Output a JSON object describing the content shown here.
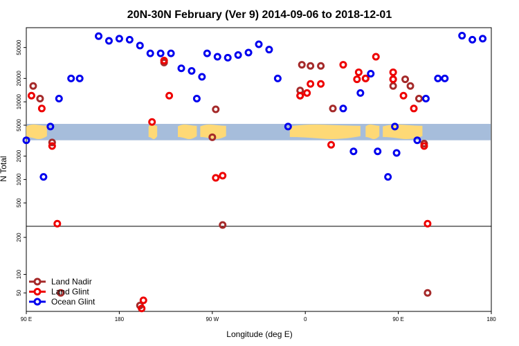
{
  "chart_data": {
    "type": "scatter",
    "title": "20N-30N February (Ver 9)   2014-09-06 to 2018-12-01",
    "xlabel": "Longitude (deg E)",
    "ylabel": "N Total",
    "xlim": [
      -90,
      180
    ],
    "x_ticks": [
      {
        "value": -90,
        "label": "90 E"
      },
      {
        "value": -36,
        "label": "180"
      },
      {
        "value": 18,
        "label": "90 W"
      },
      {
        "value": 72,
        "label": "0"
      },
      {
        "value": 126,
        "label": "90 E"
      },
      {
        "value": 180,
        "label": "180"
      }
    ],
    "upper_panel": {
      "scale": "log",
      "ylim": [
        250,
        90000
      ],
      "y_ticks": [
        500,
        1000,
        2000,
        5000,
        10000,
        20000,
        50000
      ],
      "map_band": {
        "ymin": 3200,
        "ymax": 5200,
        "ocean_color": "#a6bddb",
        "land_color": "#fed976"
      }
    },
    "lower_panel": {
      "scale": "linear",
      "ylim": [
        0,
        230
      ],
      "y_ticks": [
        50,
        100,
        200
      ]
    },
    "legend_position": "bottom-left",
    "series": [
      {
        "name": "Land Nadir",
        "color": "#a52a2a",
        "points": [
          [
            -86,
            16000
          ],
          [
            -82,
            11000
          ],
          [
            -75,
            3000
          ],
          [
            18,
            3500
          ],
          [
            -10,
            32000
          ],
          [
            20,
            8000
          ],
          [
            24,
            260
          ],
          [
            69,
            14000
          ],
          [
            69,
            12000
          ],
          [
            70,
            30000
          ],
          [
            75,
            29000
          ],
          [
            81,
            29000
          ],
          [
            88,
            8200
          ],
          [
            107,
            20000
          ],
          [
            123,
            16000
          ],
          [
            123,
            19500
          ],
          [
            130,
            19500
          ],
          [
            133,
            16000
          ],
          [
            138,
            11000
          ],
          [
            141,
            2900
          ],
          [
            -70,
            50
          ],
          [
            -24,
            16
          ],
          [
            143,
            50
          ]
        ]
      },
      {
        "name": "Land Glint",
        "color": "#ee0000",
        "points": [
          [
            -87,
            12000
          ],
          [
            -81,
            8200
          ],
          [
            -75,
            2700
          ],
          [
            -72,
            270
          ],
          [
            -17,
            5500
          ],
          [
            -10,
            34000
          ],
          [
            -7,
            12000
          ],
          [
            20,
            1050
          ],
          [
            24,
            1120
          ],
          [
            69,
            12000
          ],
          [
            73,
            13000
          ],
          [
            75,
            17000
          ],
          [
            81,
            17000
          ],
          [
            87,
            2800
          ],
          [
            94,
            30000
          ],
          [
            103,
            24000
          ],
          [
            102,
            19500
          ],
          [
            107,
            20000
          ],
          [
            113,
            38000
          ],
          [
            123,
            24000
          ],
          [
            123,
            19500
          ],
          [
            129,
            12000
          ],
          [
            135,
            8200
          ],
          [
            141,
            2700
          ],
          [
            143,
            270
          ],
          [
            -22,
            30
          ],
          [
            -23,
            8
          ]
        ]
      },
      {
        "name": "Ocean Glint",
        "color": "#0000ee",
        "points": [
          [
            -90,
            3200
          ],
          [
            -80,
            1080
          ],
          [
            -76,
            4800
          ],
          [
            -71,
            11000
          ],
          [
            -64,
            20000
          ],
          [
            -59,
            20000
          ],
          [
            -48,
            70000
          ],
          [
            -42,
            61000
          ],
          [
            -36,
            65000
          ],
          [
            -30,
            63000
          ],
          [
            -24,
            53000
          ],
          [
            -18,
            42000
          ],
          [
            -12,
            42000
          ],
          [
            -6,
            42000
          ],
          [
            0,
            27000
          ],
          [
            6,
            25000
          ],
          [
            9,
            11000
          ],
          [
            12,
            21000
          ],
          [
            15,
            42000
          ],
          [
            21,
            38000
          ],
          [
            27,
            37000
          ],
          [
            33,
            40000
          ],
          [
            39,
            43000
          ],
          [
            45,
            55000
          ],
          [
            51,
            47000
          ],
          [
            56,
            20000
          ],
          [
            62,
            4800
          ],
          [
            94,
            8200
          ],
          [
            100,
            2300
          ],
          [
            104,
            13000
          ],
          [
            110,
            23000
          ],
          [
            114,
            2300
          ],
          [
            120,
            1080
          ],
          [
            124,
            4800
          ],
          [
            125,
            2200
          ],
          [
            137,
            3200
          ],
          [
            142,
            11000
          ],
          [
            149,
            20000
          ],
          [
            153,
            20000
          ],
          [
            163,
            71000
          ],
          [
            169,
            63000
          ],
          [
            175,
            65000
          ]
        ]
      }
    ]
  }
}
